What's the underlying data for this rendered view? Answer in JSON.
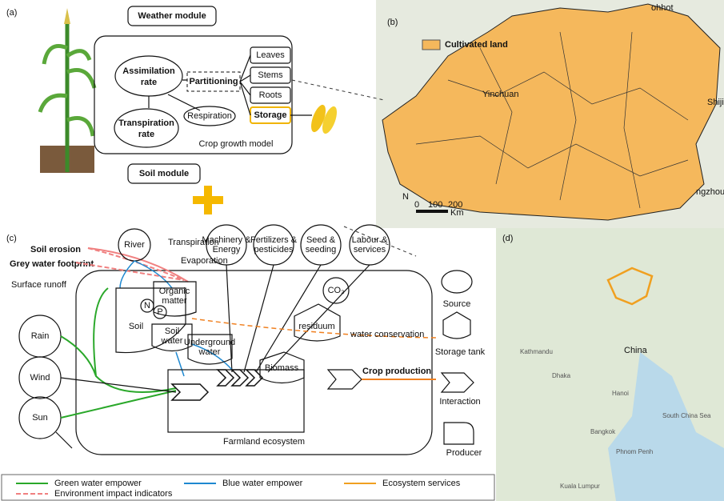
{
  "a": {
    "label": "(a)",
    "weather": "Weather module",
    "assimilation": [
      "Assimilation",
      "rate"
    ],
    "partitioning": "Partitioning",
    "organs": [
      "Leaves",
      "Stems",
      "Roots",
      "Storage"
    ],
    "respiration": "Respiration",
    "transpiration": [
      "Transpiration",
      "rate"
    ],
    "model": "Crop growth model",
    "soil": "Soil module"
  },
  "b": {
    "label": "(b)",
    "legend": "Cultivated land",
    "places": [
      "ohhot",
      "Yinchuan",
      "Shiji",
      "ngzhou"
    ],
    "north": "N",
    "scale": [
      0,
      100,
      200
    ],
    "unit": "Km"
  },
  "c": {
    "label": "(c)",
    "soil_erosion": "Soil erosion",
    "grey_water": "Grey water footprint",
    "runoff": "Surface runoff",
    "river": "River",
    "transpiration": "Transpiration",
    "evaporation": "Evaporation",
    "inputs": [
      [
        "Machinery &",
        "Energy"
      ],
      [
        "Fertilizers &",
        "pesticides"
      ],
      [
        "Seed &",
        "seeding"
      ],
      [
        "Labour &",
        "services"
      ]
    ],
    "organic": [
      "Organic",
      "matter"
    ],
    "n": "N",
    "p": "P",
    "soil": "Soil",
    "soil_water": [
      "Soil",
      "water"
    ],
    "underground": [
      "Underground",
      "water"
    ],
    "co2": "CO₂",
    "residuum": "residuum",
    "water_conservation": "water conservation",
    "rain": "Rain",
    "wind": "Wind",
    "sun": "Sun",
    "biomass": "Biomass",
    "crop_production": "Crop production",
    "ecosystem": "Farmland ecosystem",
    "symbols": [
      "Source",
      "Storage tank",
      "Interaction",
      "Producer"
    ]
  },
  "d": {
    "label": "(d)",
    "country": "China",
    "places": [
      "Kathmandu",
      "Dhaka",
      "Hanoi",
      "Bangkok",
      "Phnom Penh",
      "South China Sea",
      "Kuala Lumpur"
    ]
  },
  "legend": [
    "Green water empower",
    "Blue water empower",
    "Ecosystem services",
    "Environment impact indicators"
  ]
}
